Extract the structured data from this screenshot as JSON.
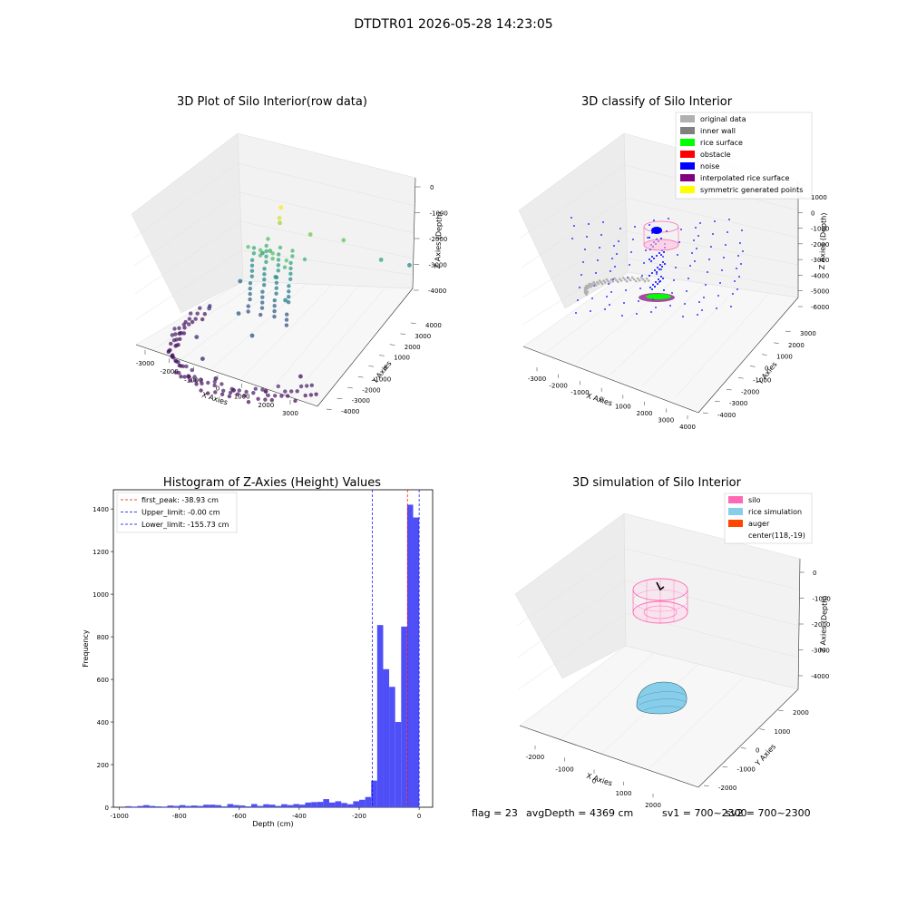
{
  "suptitle": "DTDTR01 2026-05-28 14:23:05",
  "footer": {
    "flag": "flag = 23",
    "avg": "avgDepth = 4369 cm",
    "sv1": "sv1 = 700~2300",
    "sv2": "sv2 = 700~2300"
  },
  "colors": {
    "hist": "#4f4ff7",
    "pink": "#ff69b4",
    "light_blue": "#87ceeb",
    "auger": "#ff4500",
    "gray": "#b0b0b0",
    "dark_gray": "#808080",
    "green": "#00ff00",
    "red": "#ff0000",
    "blue": "#0000ff",
    "purple": "#800080",
    "yellow": "#ffff00"
  },
  "chart_data": [
    {
      "type": "scatter",
      "projection": "3d",
      "title": "3D Plot of Silo Interior(row data)",
      "xlabel": "X Axies",
      "ylabel": "Y Axies",
      "zlabel": "Z Axies (Depth)",
      "xticks": [
        "-3000",
        "-2000",
        "-1000",
        "0",
        "1000",
        "2000",
        "3000"
      ],
      "yticks": [
        "4000",
        "3000",
        "2000",
        "1000",
        "0",
        "-1000",
        "-2000",
        "-3000",
        "-4000"
      ],
      "zticks": [
        "0",
        "-1000",
        "-2000",
        "-3000",
        "-4000"
      ],
      "colormap": "viridis",
      "points": [
        {
          "x": 0,
          "y": 200,
          "z": 0
        },
        {
          "x": 100,
          "y": 0,
          "z": -200
        },
        {
          "x": -200,
          "y": 400,
          "z": -600
        },
        {
          "x": 600,
          "y": 800,
          "z": -900
        },
        {
          "x": 1500,
          "y": 1200,
          "z": -1000
        },
        {
          "x": 2400,
          "y": 1800,
          "z": -1600
        },
        {
          "x": 2800,
          "y": 2600,
          "z": -2000
        },
        {
          "x": -400,
          "y": 200,
          "z": -1400
        },
        {
          "x": -1000,
          "y": 600,
          "z": -1800
        },
        {
          "x": 200,
          "y": -300,
          "z": -1800
        },
        {
          "x": 800,
          "y": -600,
          "z": -2200
        },
        {
          "x": -1500,
          "y": 200,
          "z": -2600
        },
        {
          "x": -600,
          "y": -1000,
          "z": -2800
        },
        {
          "x": 300,
          "y": -1500,
          "z": -3000
        },
        {
          "x": -2000,
          "y": -600,
          "z": -3200
        },
        {
          "x": -1500,
          "y": -1800,
          "z": -3400
        },
        {
          "x": -800,
          "y": -2400,
          "z": -3600
        },
        {
          "x": 0,
          "y": -2800,
          "z": -3800
        },
        {
          "x": -2400,
          "y": -1400,
          "z": -3700
        },
        {
          "x": -1000,
          "y": -2800,
          "z": -4000
        },
        {
          "x": 500,
          "y": -2600,
          "z": -4100
        },
        {
          "x": 1200,
          "y": -2000,
          "z": -4200
        },
        {
          "x": 2000,
          "y": -1400,
          "z": -3800
        }
      ]
    },
    {
      "type": "scatter",
      "projection": "3d",
      "title": "3D classify of Silo Interior",
      "xlabel": "X Axies",
      "ylabel": "Y Axies",
      "zlabel": "Z Axies (Depth)",
      "xticks": [
        "-3000",
        "-2000",
        "-1000",
        "0",
        "1000",
        "2000",
        "3000",
        "4000"
      ],
      "yticks": [
        "3000",
        "2000",
        "1000",
        "0",
        "-1000",
        "-2000",
        "-3000",
        "-4000"
      ],
      "zticks": [
        "1000",
        "0",
        "-1000",
        "-2000",
        "-3000",
        "-4000",
        "-5000",
        "-6000"
      ],
      "legend_position": "top-right",
      "series": [
        {
          "name": "original data",
          "color": "#b0b0b0"
        },
        {
          "name": "inner wall",
          "color": "#808080"
        },
        {
          "name": "rice surface",
          "color": "#00ff00"
        },
        {
          "name": "obstacle",
          "color": "#ff0000"
        },
        {
          "name": "noise",
          "color": "#0000ff"
        },
        {
          "name": "interpolated rice surface",
          "color": "#800080"
        },
        {
          "name": "symmetric generated points",
          "color": "#ffff00"
        }
      ]
    },
    {
      "type": "bar",
      "title": "Histogram of Z-Axies (Height) Values",
      "xlabel": "Depth (cm)",
      "ylabel": "Frequency",
      "xlim": [
        -1020,
        45
      ],
      "ylim": [
        0,
        1490
      ],
      "xticks": [
        -1000,
        -800,
        -600,
        -400,
        -200,
        0
      ],
      "yticks": [
        0,
        200,
        400,
        600,
        800,
        1000,
        1200,
        1400
      ],
      "bin_width": 20,
      "bins": [
        {
          "x": -980,
          "count": 5
        },
        {
          "x": -960,
          "count": 3
        },
        {
          "x": -940,
          "count": 6
        },
        {
          "x": -920,
          "count": 10
        },
        {
          "x": -900,
          "count": 6
        },
        {
          "x": -880,
          "count": 4
        },
        {
          "x": -860,
          "count": 3
        },
        {
          "x": -840,
          "count": 8
        },
        {
          "x": -820,
          "count": 6
        },
        {
          "x": -800,
          "count": 10
        },
        {
          "x": -780,
          "count": 6
        },
        {
          "x": -760,
          "count": 8
        },
        {
          "x": -740,
          "count": 6
        },
        {
          "x": -720,
          "count": 12
        },
        {
          "x": -700,
          "count": 12
        },
        {
          "x": -680,
          "count": 10
        },
        {
          "x": -660,
          "count": 4
        },
        {
          "x": -640,
          "count": 15
        },
        {
          "x": -620,
          "count": 10
        },
        {
          "x": -600,
          "count": 8
        },
        {
          "x": -580,
          "count": 4
        },
        {
          "x": -560,
          "count": 15
        },
        {
          "x": -540,
          "count": 6
        },
        {
          "x": -520,
          "count": 14
        },
        {
          "x": -500,
          "count": 12
        },
        {
          "x": -480,
          "count": 6
        },
        {
          "x": -460,
          "count": 14
        },
        {
          "x": -440,
          "count": 10
        },
        {
          "x": -420,
          "count": 15
        },
        {
          "x": -400,
          "count": 12
        },
        {
          "x": -380,
          "count": 22
        },
        {
          "x": -360,
          "count": 24
        },
        {
          "x": -340,
          "count": 25
        },
        {
          "x": -320,
          "count": 38
        },
        {
          "x": -300,
          "count": 22
        },
        {
          "x": -280,
          "count": 28
        },
        {
          "x": -260,
          "count": 20
        },
        {
          "x": -240,
          "count": 14
        },
        {
          "x": -220,
          "count": 28
        },
        {
          "x": -200,
          "count": 35
        },
        {
          "x": -180,
          "count": 48
        },
        {
          "x": -160,
          "count": 125
        },
        {
          "x": -140,
          "count": 855
        },
        {
          "x": -120,
          "count": 648
        },
        {
          "x": -100,
          "count": 565
        },
        {
          "x": -80,
          "count": 400
        },
        {
          "x": -60,
          "count": 848
        },
        {
          "x": -40,
          "count": 1420
        },
        {
          "x": -20,
          "count": 1360
        }
      ],
      "lines": [
        {
          "label": "first_peak: -38.93 cm",
          "value": -38.93,
          "color": "#ff0000"
        },
        {
          "label": "Upper_limit: -0.00 cm",
          "value": 0,
          "color": "#0000ff"
        },
        {
          "label": "Lower_limit: -155.73 cm",
          "value": -155.73,
          "color": "#0000ff"
        }
      ],
      "legend_position": "top-left"
    },
    {
      "type": "surface",
      "projection": "3d",
      "title": "3D simulation of Silo Interior",
      "xlabel": "X Axies",
      "ylabel": "Y Axies",
      "zlabel": "Z Axies (Depth)",
      "xticks": [
        "-2000",
        "-1000",
        "0",
        "1000",
        "2000"
      ],
      "yticks": [
        "2000",
        "1000",
        "0",
        "-1000",
        "-2000"
      ],
      "zticks": [
        "0",
        "-1000",
        "-2000",
        "-3000",
        "-4000"
      ],
      "legend_position": "top-right",
      "series": [
        {
          "name": "silo",
          "color": "#ff69b4"
        },
        {
          "name": "rice simulation",
          "color": "#87ceeb"
        },
        {
          "name": "auger",
          "color": "#ff4500"
        },
        {
          "name": "center(118,-19)",
          "color": ""
        }
      ]
    }
  ]
}
